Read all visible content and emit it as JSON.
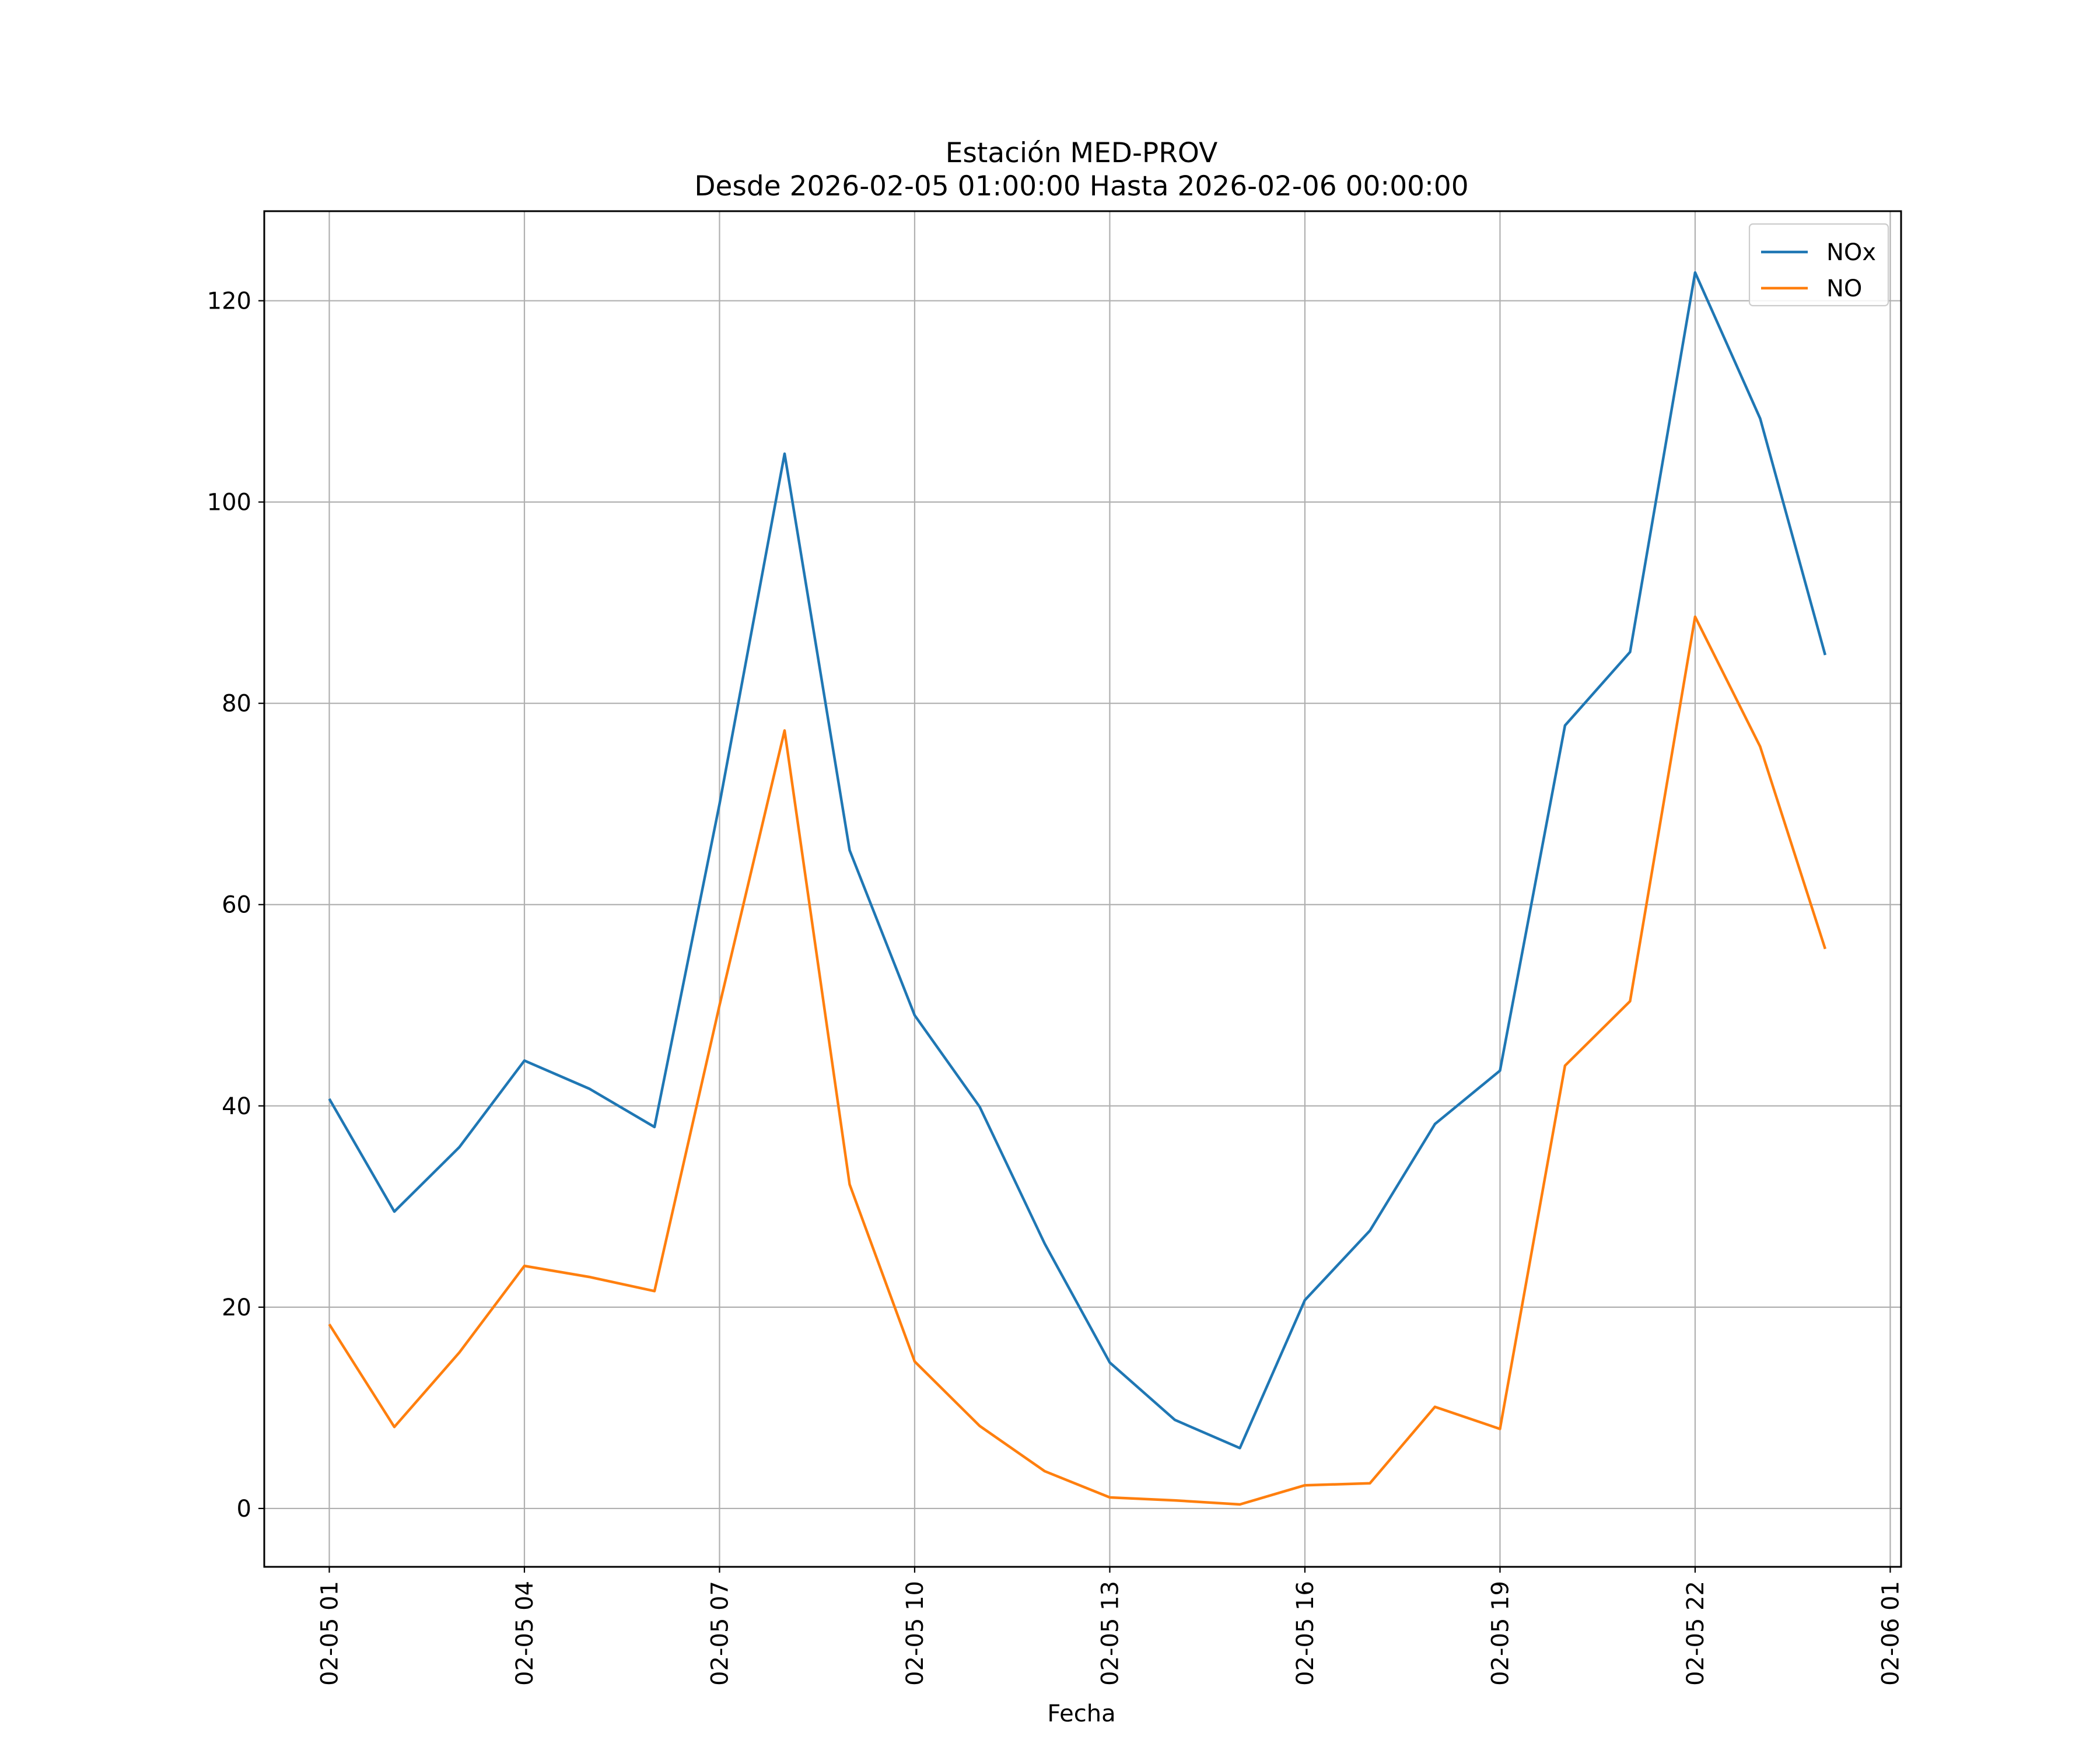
{
  "chart_data": {
    "type": "line",
    "title": "Estación MED-PROV",
    "subtitle": "Desde 2026-02-05 01:00:00 Hasta 2026-02-06 00:00:00",
    "xlabel": "Fecha",
    "ylabel": "",
    "x": [
      "2026-02-05 01:00",
      "2026-02-05 02:00",
      "2026-02-05 03:00",
      "2026-02-05 04:00",
      "2026-02-05 05:00",
      "2026-02-05 06:00",
      "2026-02-05 07:00",
      "2026-02-05 08:00",
      "2026-02-05 09:00",
      "2026-02-05 10:00",
      "2026-02-05 11:00",
      "2026-02-05 12:00",
      "2026-02-05 13:00",
      "2026-02-05 14:00",
      "2026-02-05 15:00",
      "2026-02-05 16:00",
      "2026-02-05 17:00",
      "2026-02-05 18:00",
      "2026-02-05 19:00",
      "2026-02-05 20:00",
      "2026-02-05 21:00",
      "2026-02-05 22:00",
      "2026-02-05 23:00",
      "2026-02-06 00:00"
    ],
    "xlim": [
      "2026-02-05 00:00",
      "2026-02-06 01:10"
    ],
    "series": [
      {
        "name": "NOx",
        "color": "#1f77b4",
        "values": [
          40.7,
          29.5,
          35.9,
          44.5,
          41.7,
          37.9,
          70.0,
          104.8,
          65.4,
          49.0,
          39.9,
          26.3,
          14.5,
          8.8,
          6.0,
          20.7,
          27.6,
          38.2,
          43.5,
          77.8,
          85.1,
          122.8,
          108.3,
          84.8
        ]
      },
      {
        "name": "NO",
        "color": "#ff7f0e",
        "values": [
          18.3,
          8.1,
          15.5,
          24.1,
          23.0,
          21.6,
          50.0,
          77.3,
          32.2,
          14.6,
          8.2,
          3.7,
          1.1,
          0.8,
          0.4,
          2.3,
          2.5,
          10.1,
          7.9,
          44.0,
          50.4,
          88.6,
          75.7,
          55.6
        ]
      }
    ],
    "yticks": [
      0,
      20,
      40,
      60,
      80,
      100,
      120
    ],
    "xticks": [
      "02-05 01",
      "02-05 04",
      "02-05 07",
      "02-05 10",
      "02-05 13",
      "02-05 16",
      "02-05 19",
      "02-05 22",
      "02-06 01"
    ],
    "xtick_hours": [
      1,
      4,
      7,
      10,
      13,
      16,
      19,
      22,
      25
    ],
    "ylim": [
      -5.8,
      128.9
    ],
    "grid": true,
    "legend": "top-right"
  }
}
